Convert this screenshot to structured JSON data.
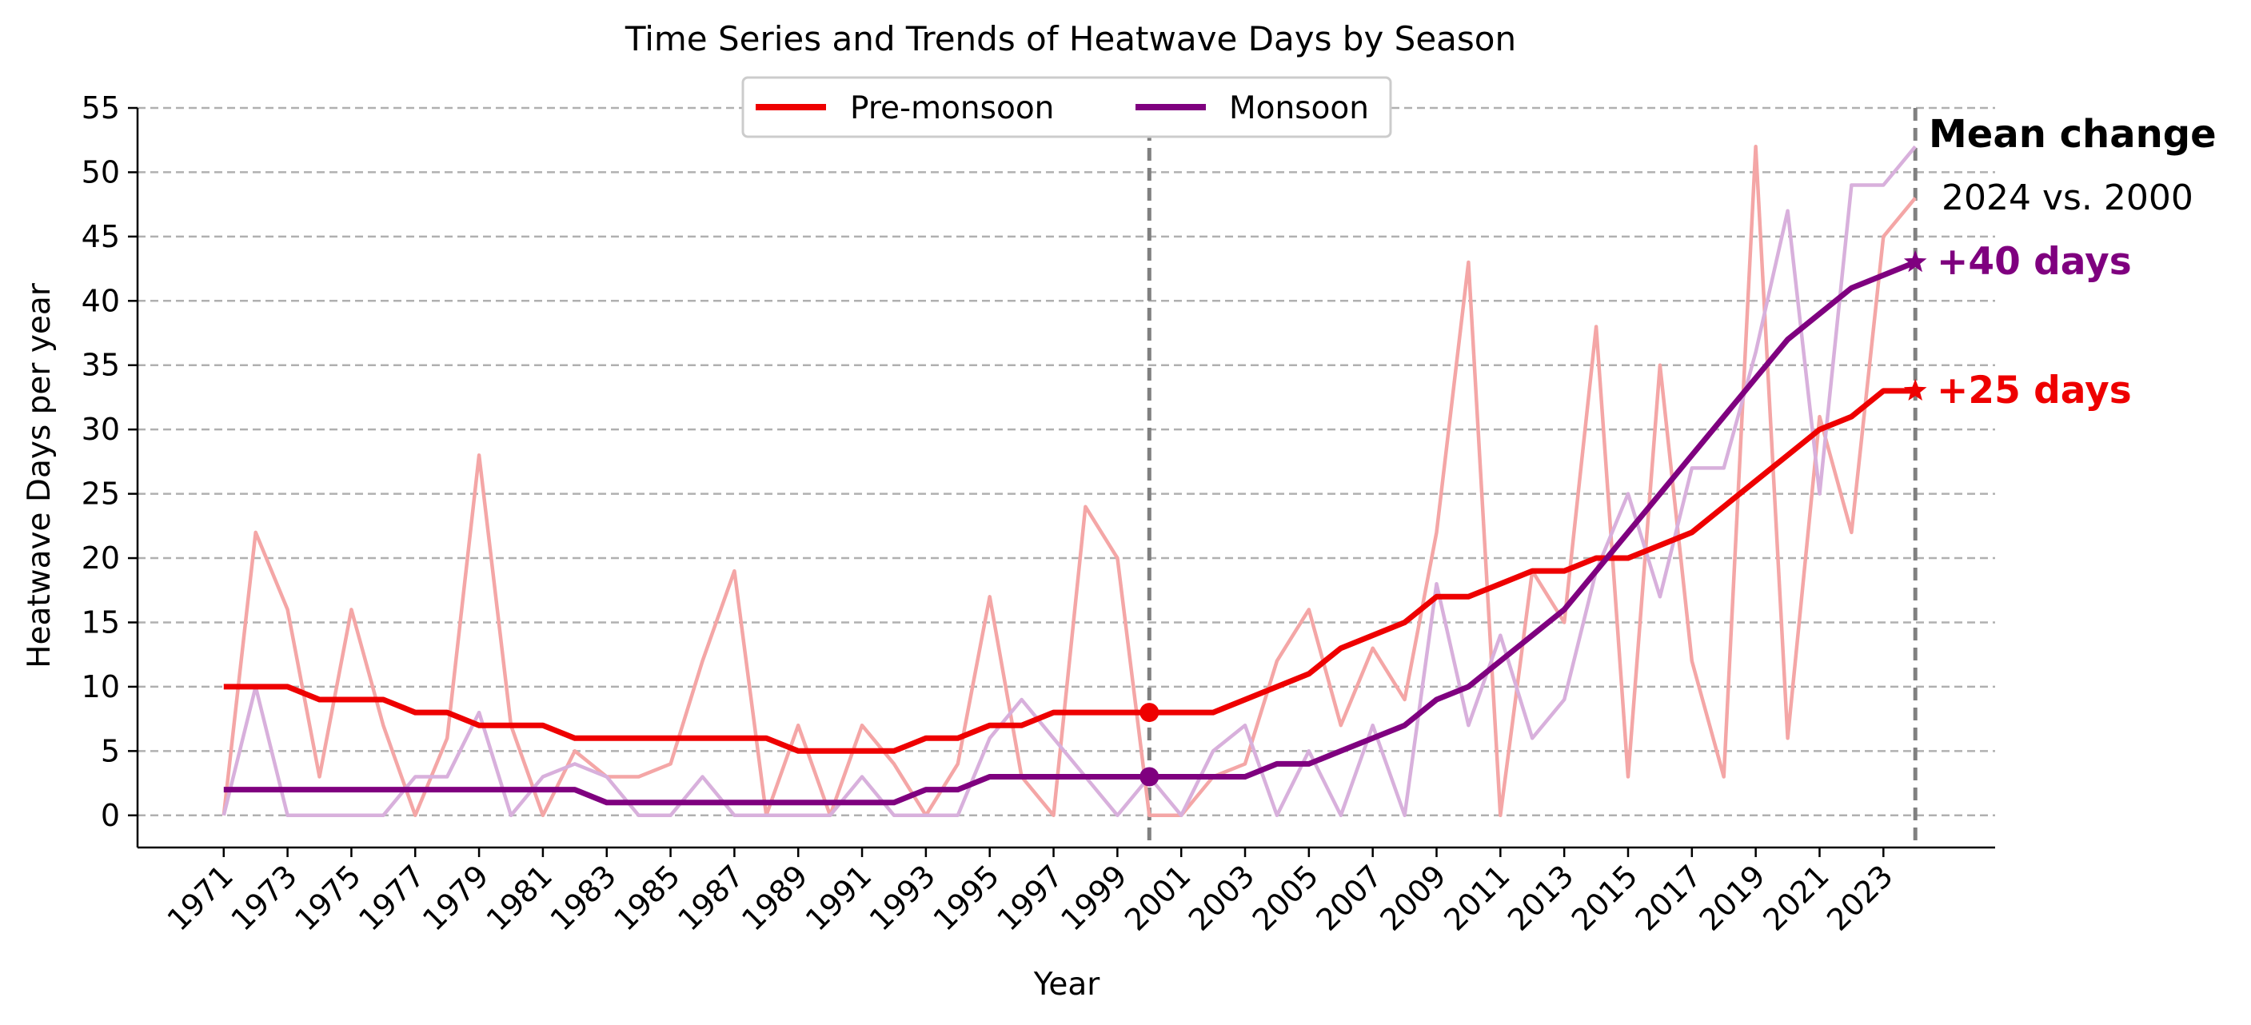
{
  "chart_data": {
    "type": "line",
    "title": "Time Series and Trends of Heatwave Days by Season",
    "xlabel": "Year",
    "ylabel": "Heatwave Days per year",
    "xlim": [
      1968.3,
      2026.5
    ],
    "ylim": [
      -2.5,
      55
    ],
    "yticks": [
      0,
      5,
      10,
      15,
      20,
      25,
      30,
      35,
      40,
      45,
      50,
      55
    ],
    "xticks": [
      1971,
      1973,
      1975,
      1977,
      1979,
      1981,
      1983,
      1985,
      1987,
      1989,
      1991,
      1993,
      1995,
      1997,
      1999,
      2001,
      2003,
      2005,
      2007,
      2009,
      2011,
      2013,
      2015,
      2017,
      2019,
      2021,
      2023
    ],
    "grid": "y-dashed",
    "legend": {
      "position": "top-center"
    },
    "x": [
      1971,
      1972,
      1973,
      1974,
      1975,
      1976,
      1977,
      1978,
      1979,
      1980,
      1981,
      1982,
      1983,
      1984,
      1985,
      1986,
      1987,
      1988,
      1989,
      1990,
      1991,
      1992,
      1993,
      1994,
      1995,
      1996,
      1997,
      1998,
      1999,
      2000,
      2001,
      2002,
      2003,
      2004,
      2005,
      2006,
      2007,
      2008,
      2009,
      2010,
      2011,
      2012,
      2013,
      2014,
      2015,
      2016,
      2017,
      2018,
      2019,
      2020,
      2021,
      2022,
      2023,
      2024
    ],
    "series": [
      {
        "name": "Pre-monsoon",
        "color": "#ee0000",
        "raw_color": "#f4a6a6",
        "raw": [
          0,
          22,
          16,
          3,
          16,
          7,
          0,
          6,
          28,
          7,
          0,
          5,
          3,
          3,
          4,
          12,
          19,
          0,
          7,
          0,
          7,
          4,
          0,
          4,
          17,
          3,
          0,
          24,
          20,
          0,
          0,
          3,
          4,
          12,
          16,
          7,
          13,
          9,
          22,
          43,
          0,
          19,
          15,
          38,
          3,
          35,
          12,
          3,
          52,
          6,
          31,
          22,
          45,
          48
        ],
        "trend": [
          10,
          10,
          10,
          9,
          9,
          9,
          8,
          8,
          7,
          7,
          7,
          6,
          6,
          6,
          6,
          6,
          6,
          6,
          5,
          5,
          5,
          5,
          6,
          6,
          7,
          7,
          8,
          8,
          8,
          8,
          8,
          8,
          9,
          10,
          11,
          13,
          14,
          15,
          17,
          17,
          18,
          19,
          19,
          20,
          20,
          21,
          22,
          24,
          26,
          28,
          30,
          31,
          33,
          33
        ]
      },
      {
        "name": "Monsoon",
        "color": "#7f007f",
        "raw_color": "#d8b0dc",
        "raw": [
          0,
          10,
          0,
          0,
          0,
          0,
          3,
          3,
          8,
          0,
          3,
          4,
          3,
          0,
          0,
          3,
          0,
          0,
          0,
          0,
          3,
          0,
          0,
          0,
          6,
          9,
          6,
          3,
          0,
          3,
          0,
          5,
          7,
          0,
          5,
          0,
          7,
          0,
          18,
          7,
          14,
          6,
          9,
          19,
          25,
          17,
          27,
          27,
          36,
          47,
          25,
          49,
          49,
          52
        ],
        "trend": [
          2,
          2,
          2,
          2,
          2,
          2,
          2,
          2,
          2,
          2,
          2,
          2,
          1,
          1,
          1,
          1,
          1,
          1,
          1,
          1,
          1,
          1,
          2,
          2,
          3,
          3,
          3,
          3,
          3,
          3,
          3,
          3,
          3,
          4,
          4,
          5,
          6,
          7,
          9,
          10,
          12,
          14,
          16,
          19,
          22,
          25,
          28,
          31,
          34,
          37,
          39,
          41,
          42,
          43
        ]
      }
    ],
    "reference_lines": [
      2000,
      2024
    ],
    "highlight_points": [
      {
        "year": 2000,
        "series": "Pre-monsoon",
        "value": 8
      },
      {
        "year": 2000,
        "series": "Monsoon",
        "value": 3
      }
    ],
    "annotations": {
      "mean_change_title": "Mean change",
      "mean_change_subtitle": "2024 vs. 2000",
      "monsoon_change": "+40 days",
      "premonsoon_change": "+25 days"
    }
  }
}
